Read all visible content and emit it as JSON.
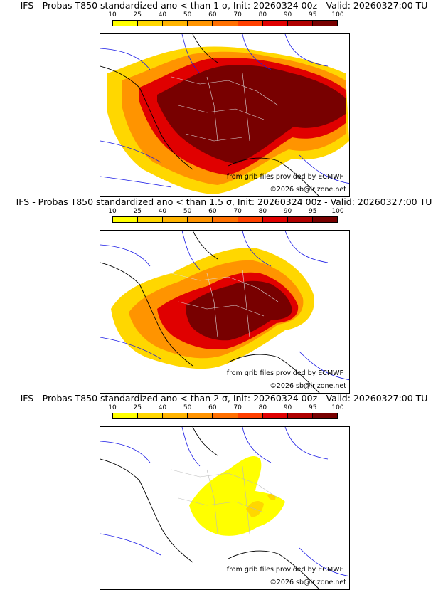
{
  "panels": [
    {
      "title": "IFS - Probas T850  standardized ano < than 1 σ, Init: 20260324 00z - Valid: 20260327:00 TU",
      "credit_source": "from grib files provided by ECMWF",
      "credit_copyright": "©2026 sb@irizone.net"
    },
    {
      "title": "IFS - Probas T850  standardized ano < than 1.5 σ, Init: 20260324 00z - Valid: 20260327:00 TU",
      "credit_source": "from grib files provided by ECMWF",
      "credit_copyright": "©2026 sb@irizone.net"
    },
    {
      "title": "IFS - Probas T850  standardized ano < than 2 σ, Init: 20260324 00z - Valid: 20260327:00 TU",
      "credit_source": "from grib files provided by ECMWF",
      "credit_copyright": "©2026 sb@irizone.net"
    }
  ],
  "colorbar": {
    "levels": [
      "10",
      "25",
      "40",
      "50",
      "60",
      "70",
      "80",
      "90",
      "95",
      "100"
    ],
    "colors": [
      "#ffff00",
      "#ffd700",
      "#ffb400",
      "#ff9400",
      "#ff7000",
      "#ff4000",
      "#e00000",
      "#b00000",
      "#780000"
    ]
  }
}
